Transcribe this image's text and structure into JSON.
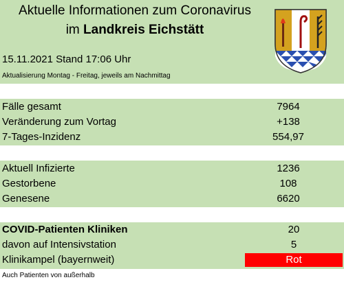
{
  "header": {
    "title_line1": "Aktuelle Informationen zum Coronavirus",
    "title_line2_prefix": "im ",
    "title_line2_bold": "Landkreis Eichstätt",
    "date": "15.11.2021 Stand 17:06 Uhr",
    "update_note": "Aktualisierung Montag - Freitag, jeweils am Nachmittag",
    "crest_icon": "coat-of-arms-icon"
  },
  "cases": [
    {
      "label": "Fälle gesamt",
      "value": "7964"
    },
    {
      "label": "Veränderung zum Vortag",
      "value": "+138"
    },
    {
      "label": "7-Tages-Inzidenz",
      "value": "554,97"
    }
  ],
  "status": [
    {
      "label": "Aktuell Infizierte",
      "value": "1236"
    },
    {
      "label": "Gestorbene",
      "value": "108"
    },
    {
      "label": "Genesene",
      "value": "6620"
    }
  ],
  "clinics": [
    {
      "label": "COVID-Patienten Kliniken",
      "value": "20"
    },
    {
      "label": "davon auf Intensivstation",
      "value": "5"
    },
    {
      "label": "Klinikampel (bayernweit)",
      "value": "Rot"
    }
  ],
  "footer_note": "Auch Patienten von außerhalb",
  "colors": {
    "band_green": "#c6e0b4",
    "traffic_light_red": "#ff0000"
  }
}
